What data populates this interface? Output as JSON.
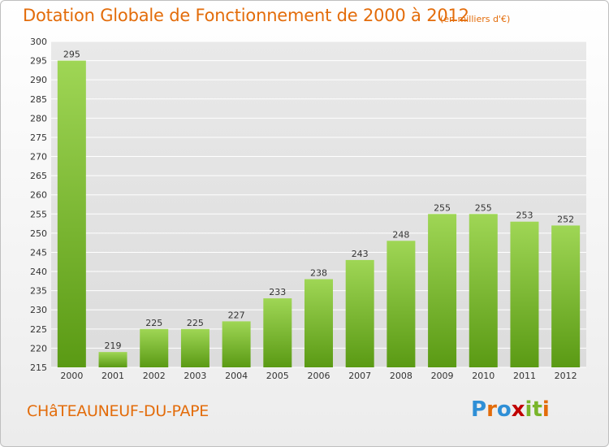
{
  "header": {
    "title": "Dotation Globale de Fonctionnement de 2000 à 2012",
    "subtitle": "(en milliers d'€)"
  },
  "footer": {
    "place": "CHâTEAUNEUF-DU-PAPE",
    "logo_letters": [
      {
        "char": "P",
        "color": "#2f8fd6"
      },
      {
        "char": "r",
        "color": "#e36c0a"
      },
      {
        "char": "o",
        "color": "#2f8fd6"
      },
      {
        "char": "x",
        "color": "#c00000"
      },
      {
        "char": "i",
        "color": "#79b52a"
      },
      {
        "char": "t",
        "color": "#79b52a"
      },
      {
        "char": "i",
        "color": "#e36c0a"
      }
    ]
  },
  "chart_data": {
    "type": "bar",
    "categories": [
      "2000",
      "2001",
      "2002",
      "2003",
      "2004",
      "2005",
      "2006",
      "2007",
      "2008",
      "2009",
      "2010",
      "2011",
      "2012"
    ],
    "values": [
      295,
      219,
      225,
      225,
      227,
      233,
      238,
      243,
      248,
      255,
      255,
      253,
      252
    ],
    "title": "Dotation Globale de Fonctionnement de 2000 à 2012",
    "ylim": [
      215,
      300
    ],
    "ytick_step": 5,
    "grid": true,
    "colors": {
      "bar_top": "#9fd655",
      "bar_bottom": "#5a9a14",
      "grid": "#ffffff",
      "axis_text": "#333333"
    }
  }
}
